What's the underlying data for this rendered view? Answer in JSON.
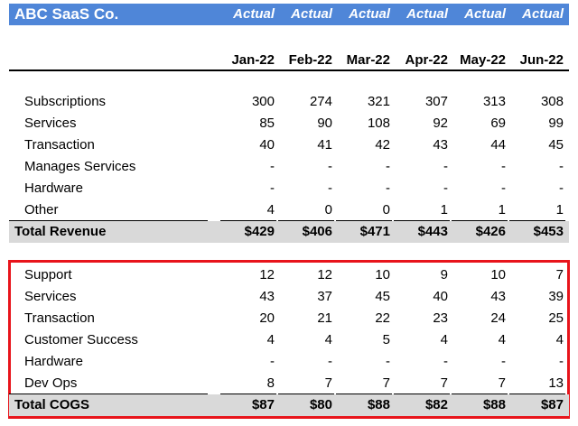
{
  "title": "ABC SaaS Co.",
  "header_label": "Actual",
  "months": [
    "Jan-22",
    "Feb-22",
    "Mar-22",
    "Apr-22",
    "May-22",
    "Jun-22"
  ],
  "revenue": {
    "rows": [
      {
        "label": "Subscriptions",
        "values": [
          "300",
          "274",
          "321",
          "307",
          "313",
          "308"
        ]
      },
      {
        "label": "Services",
        "values": [
          "85",
          "90",
          "108",
          "92",
          "69",
          "99"
        ]
      },
      {
        "label": "Transaction",
        "values": [
          "40",
          "41",
          "42",
          "43",
          "44",
          "45"
        ]
      },
      {
        "label": "Manages Services",
        "values": [
          "-",
          "-",
          "-",
          "-",
          "-",
          "-"
        ]
      },
      {
        "label": "Hardware",
        "values": [
          "-",
          "-",
          "-",
          "-",
          "-",
          "-"
        ]
      },
      {
        "label": "Other",
        "values": [
          "4",
          "0",
          "0",
          "1",
          "1",
          "1"
        ]
      }
    ],
    "total_label": "Total Revenue",
    "totals": [
      "$429",
      "$406",
      "$471",
      "$443",
      "$426",
      "$453"
    ]
  },
  "cogs": {
    "rows": [
      {
        "label": "Support",
        "values": [
          "12",
          "12",
          "10",
          "9",
          "10",
          "7"
        ]
      },
      {
        "label": "Services",
        "values": [
          "43",
          "37",
          "45",
          "40",
          "43",
          "39"
        ]
      },
      {
        "label": "Transaction",
        "values": [
          "20",
          "21",
          "22",
          "23",
          "24",
          "25"
        ]
      },
      {
        "label": "Customer Success",
        "values": [
          "4",
          "4",
          "5",
          "4",
          "4",
          "4"
        ]
      },
      {
        "label": "Hardware",
        "values": [
          "-",
          "-",
          "-",
          "-",
          "-",
          "-"
        ]
      },
      {
        "label": "Dev Ops",
        "values": [
          "8",
          "7",
          "7",
          "7",
          "7",
          "13"
        ]
      }
    ],
    "total_label": "Total COGS",
    "totals": [
      "$87",
      "$80",
      "$88",
      "$82",
      "$88",
      "$87"
    ]
  },
  "colors": {
    "header_fill": "#4f86d8",
    "total_fill": "#d9d9d9",
    "highlight_border": "#e8141b"
  }
}
